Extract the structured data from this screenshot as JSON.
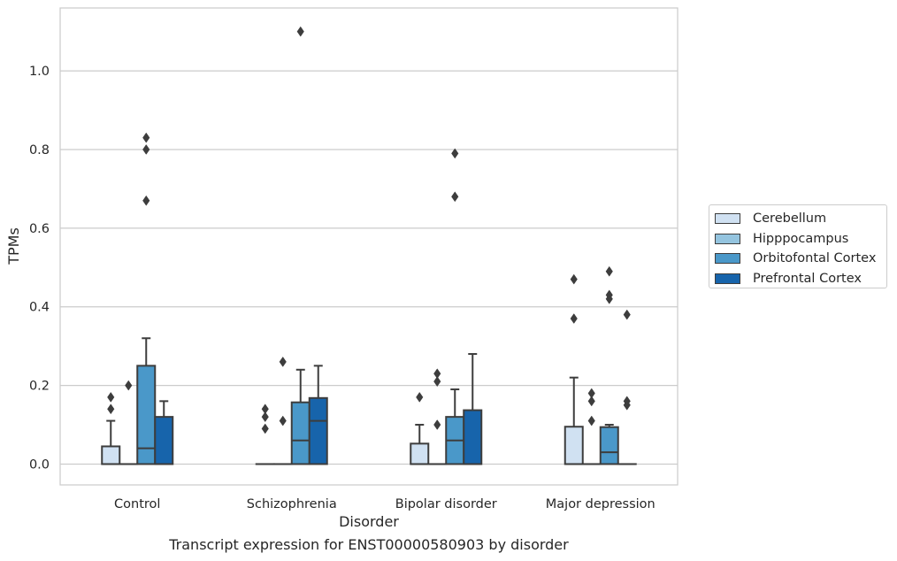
{
  "chart_data": {
    "type": "box",
    "xlabel": "Disorder",
    "ylabel": "TPMs",
    "ylim": [
      -0.053,
      1.16
    ],
    "yticks": [
      "0.0",
      "0.2",
      "0.4",
      "0.6",
      "0.8",
      "1.0"
    ],
    "grid": true,
    "legend_position": "right",
    "categories": [
      "Control",
      "Schizophrenia",
      "Bipolar disorder",
      "Major depression"
    ],
    "series": [
      {
        "name": "Cerebellum",
        "color": "#d0e1f2",
        "boxes": [
          {
            "q1": 0.0,
            "median": 0.0,
            "q3": 0.045,
            "whisker_low": 0.0,
            "whisker_high": 0.11,
            "outliers": [
              0.14,
              0.17
            ]
          },
          {
            "q1": 0.0,
            "median": 0.0,
            "q3": 0.0,
            "whisker_low": 0.0,
            "whisker_high": 0.0,
            "outliers": [
              0.09,
              0.12,
              0.14
            ]
          },
          {
            "q1": 0.0,
            "median": 0.0,
            "q3": 0.052,
            "whisker_low": 0.0,
            "whisker_high": 0.1,
            "outliers": [
              0.17
            ]
          },
          {
            "q1": 0.0,
            "median": 0.0,
            "q3": 0.095,
            "whisker_low": 0.0,
            "whisker_high": 0.22,
            "outliers": [
              0.37,
              0.47
            ]
          }
        ]
      },
      {
        "name": "Hipppocampus",
        "color": "#94c4df",
        "boxes": [
          {
            "q1": 0.0,
            "median": 0.0,
            "q3": 0.0,
            "whisker_low": 0.0,
            "whisker_high": 0.0,
            "outliers": [
              0.2
            ]
          },
          {
            "q1": 0.0,
            "median": 0.0,
            "q3": 0.0,
            "whisker_low": 0.0,
            "whisker_high": 0.0,
            "outliers": [
              0.11,
              0.26
            ]
          },
          {
            "q1": 0.0,
            "median": 0.0,
            "q3": 0.0,
            "whisker_low": 0.0,
            "whisker_high": 0.0,
            "outliers": [
              0.1,
              0.21,
              0.23
            ]
          },
          {
            "q1": 0.0,
            "median": 0.0,
            "q3": 0.0,
            "whisker_low": 0.0,
            "whisker_high": 0.0,
            "outliers": [
              0.11,
              0.16,
              0.18
            ]
          }
        ]
      },
      {
        "name": "Orbitofontal Cortex",
        "color": "#4a98c9",
        "boxes": [
          {
            "q1": 0.0,
            "median": 0.04,
            "q3": 0.25,
            "whisker_low": 0.0,
            "whisker_high": 0.32,
            "outliers": [
              0.67,
              0.8,
              0.83
            ]
          },
          {
            "q1": 0.0,
            "median": 0.06,
            "q3": 0.157,
            "whisker_low": 0.0,
            "whisker_high": 0.24,
            "outliers": [
              1.1
            ]
          },
          {
            "q1": 0.0,
            "median": 0.06,
            "q3": 0.12,
            "whisker_low": 0.0,
            "whisker_high": 0.19,
            "outliers": [
              0.68,
              0.79
            ]
          },
          {
            "q1": 0.0,
            "median": 0.03,
            "q3": 0.094,
            "whisker_low": 0.0,
            "whisker_high": 0.1,
            "outliers": [
              0.42,
              0.43,
              0.49
            ]
          }
        ]
      },
      {
        "name": "Prefrontal Cortex",
        "color": "#1764ab",
        "boxes": [
          {
            "q1": 0.0,
            "median": 0.0,
            "q3": 0.12,
            "whisker_low": 0.0,
            "whisker_high": 0.16,
            "outliers": []
          },
          {
            "q1": 0.0,
            "median": 0.11,
            "q3": 0.168,
            "whisker_low": 0.0,
            "whisker_high": 0.25,
            "outliers": []
          },
          {
            "q1": 0.0,
            "median": 0.0,
            "q3": 0.137,
            "whisker_low": 0.0,
            "whisker_high": 0.28,
            "outliers": []
          },
          {
            "q1": 0.0,
            "median": 0.0,
            "q3": 0.0,
            "whisker_low": 0.0,
            "whisker_high": 0.0,
            "outliers": [
              0.15,
              0.16,
              0.38
            ]
          }
        ]
      }
    ],
    "caption": "Transcript expression for ENST00000580903 by disorder"
  }
}
